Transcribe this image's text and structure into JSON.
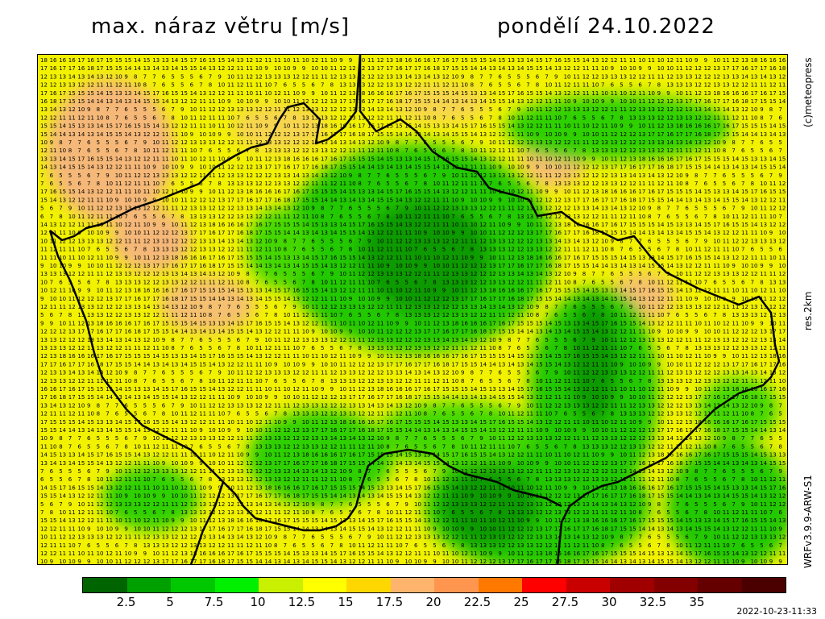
{
  "title": {
    "variable": "max. náraz větru [m/s]",
    "date": "pondělí 24.10.2022"
  },
  "side_labels": {
    "copyright": "(c)meteopress",
    "resolution": "res.2km",
    "model": "WRFv3.9.9-ARW-S1"
  },
  "timestamp": "2022-10-23-11:33",
  "map": {
    "region": "Czech Republic",
    "grid_values_sample": [
      [
        18,
        16,
        16,
        16,
        17,
        16,
        17,
        15,
        15,
        15,
        14,
        15,
        13,
        13,
        14,
        15,
        17,
        16,
        15,
        15,
        14,
        13,
        12,
        12,
        11,
        11,
        10,
        11,
        10,
        12,
        11,
        10,
        9,
        9,
        10,
        11,
        12,
        13
      ],
      [
        17,
        17,
        16,
        17,
        17,
        16,
        18,
        17,
        15,
        15,
        14,
        14,
        13,
        14,
        13,
        14,
        15,
        15,
        14,
        13,
        12,
        12,
        11,
        11,
        10,
        9,
        10,
        10,
        9,
        9,
        10,
        10,
        11,
        12,
        12,
        12,
        13
      ],
      [
        12,
        12,
        12,
        13,
        13,
        14,
        13,
        14,
        13,
        12,
        10,
        9,
        8,
        7,
        7,
        6,
        5,
        5,
        5,
        6,
        7,
        9,
        10,
        11,
        12,
        12,
        13,
        13,
        13,
        12,
        12,
        11,
        11,
        12,
        13,
        13
      ],
      [
        13,
        13,
        13,
        12,
        12,
        13,
        13,
        12,
        12,
        11,
        11,
        12,
        11,
        10,
        8,
        7,
        6,
        5,
        5,
        6,
        7,
        8,
        10,
        11,
        12,
        11,
        11,
        10,
        7,
        6,
        5,
        5,
        6,
        7,
        8
      ]
    ],
    "colors": {
      "low_green": "#00b400",
      "mid_green": "#33d400",
      "yellow": "#f4f400",
      "orange": "#f7b070",
      "border": "#000000"
    }
  },
  "colorbar": {
    "colors": [
      "#006400",
      "#00a000",
      "#00c800",
      "#00f000",
      "#c8f000",
      "#ffff00",
      "#ffd700",
      "#ffb46e",
      "#ff9650",
      "#ff7800",
      "#ff0000",
      "#c80000",
      "#a00000",
      "#820000",
      "#640000",
      "#4b0000"
    ],
    "labels": [
      "2.5",
      "5",
      "7.5",
      "10",
      "12.5",
      "15",
      "17.5",
      "20",
      "22.5",
      "25",
      "27.5",
      "30",
      "32.5",
      "35"
    ]
  }
}
